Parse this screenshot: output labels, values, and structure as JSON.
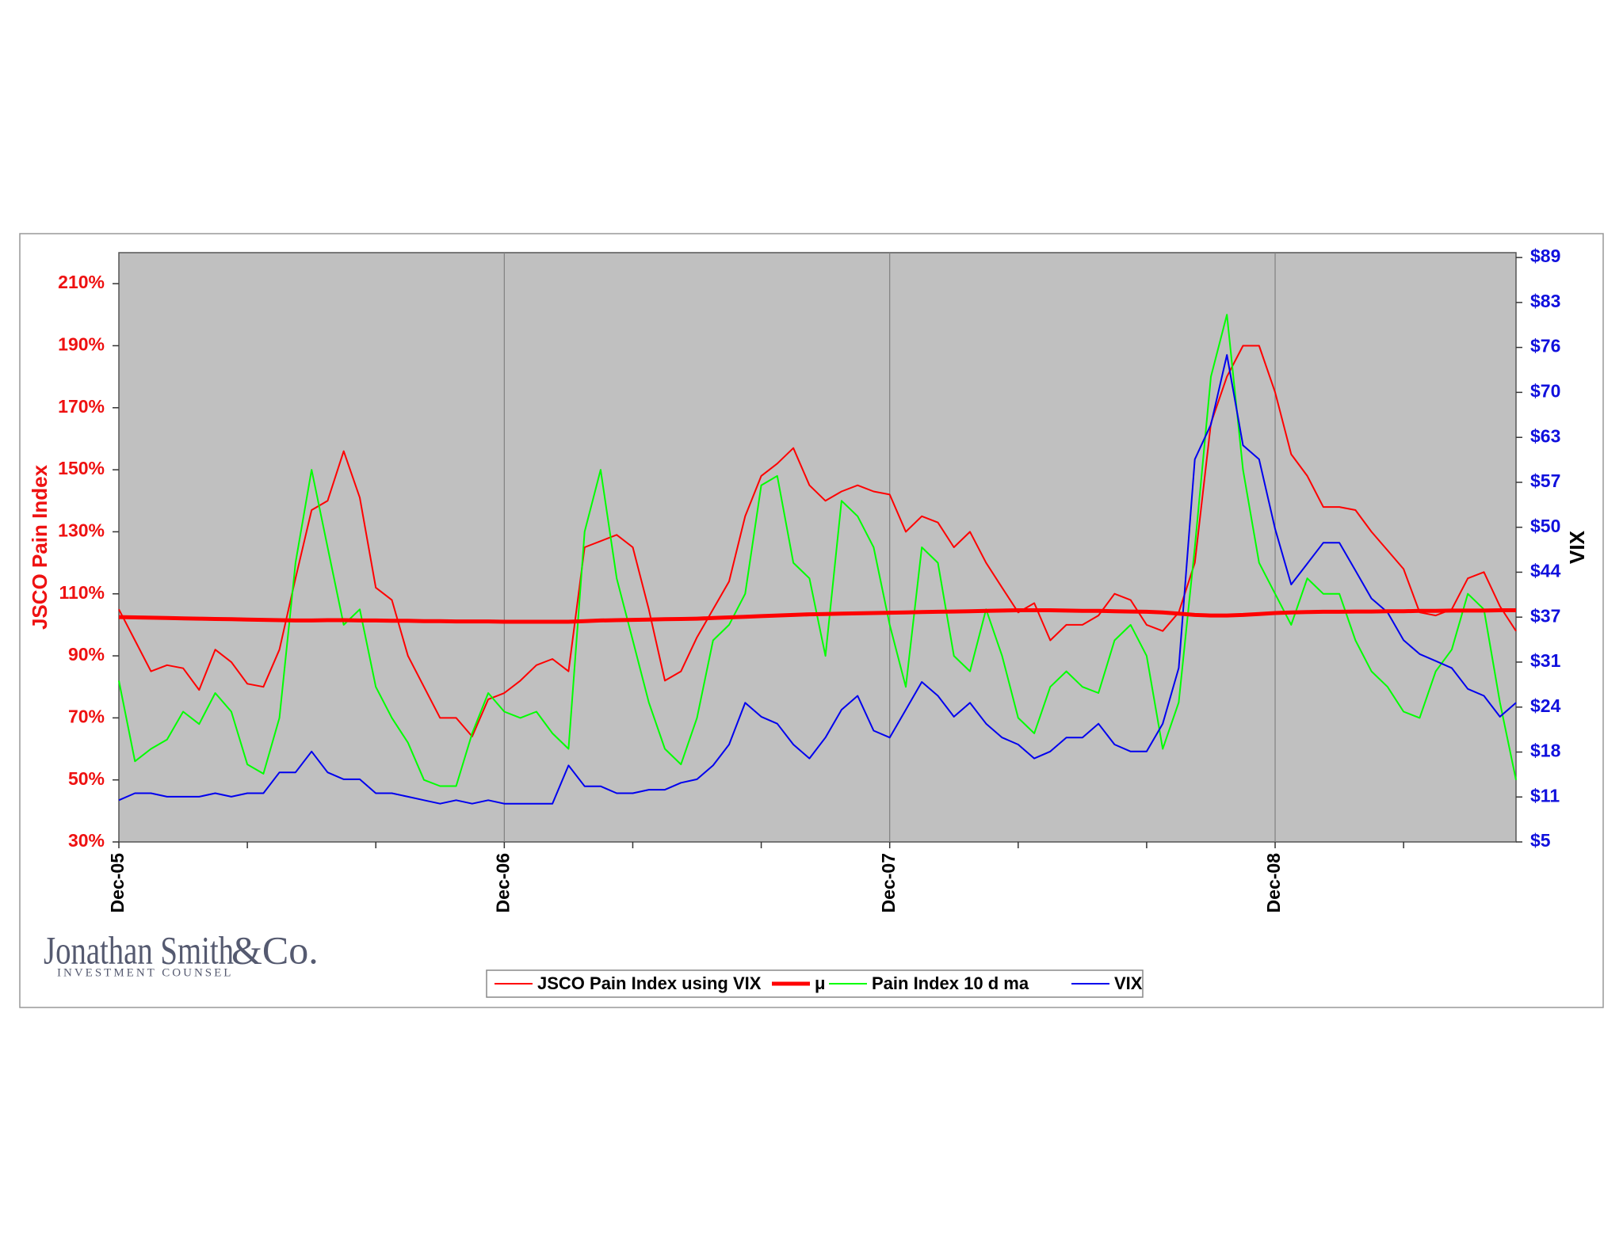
{
  "chart_data": {
    "type": "line",
    "ylabel": "JSCO Pain Index",
    "y2label": "VIX",
    "categories": [
      "Dec-05",
      null,
      null,
      null,
      null,
      null,
      null,
      null,
      null,
      null,
      null,
      null,
      null,
      null,
      null,
      null,
      null,
      null,
      null,
      null,
      null,
      null,
      null,
      null,
      "Dec-06",
      null,
      null,
      null,
      null,
      null,
      null,
      null,
      null,
      null,
      null,
      null,
      null,
      null,
      null,
      null,
      null,
      null,
      null,
      null,
      null,
      null,
      null,
      null,
      "Dec-07",
      null,
      null,
      null,
      null,
      null,
      null,
      null,
      null,
      null,
      null,
      null,
      null,
      null,
      null,
      null,
      null,
      null,
      null,
      null,
      null,
      null,
      null,
      null,
      "Dec-08",
      null,
      null,
      null,
      null,
      null,
      null,
      null,
      null,
      null,
      null,
      null,
      null,
      null,
      null,
      null
    ],
    "series": [
      {
        "name": "JSCO Pain Index using VIX",
        "color": "#ff0000",
        "width": 2,
        "values": [
          105,
          95,
          85,
          87,
          86,
          79,
          92,
          88,
          81,
          80,
          92,
          115,
          137,
          140,
          156,
          141,
          112,
          108,
          90,
          80,
          70,
          70,
          64,
          76,
          78,
          82,
          87,
          89,
          85,
          125,
          127,
          129,
          125,
          105,
          82,
          85,
          96,
          105,
          114,
          135,
          148,
          152,
          157,
          145,
          140,
          143,
          145,
          143,
          142,
          130,
          135,
          133,
          125,
          130,
          120,
          112,
          104,
          107,
          95,
          100,
          100,
          103,
          110,
          108,
          100,
          98,
          104,
          120,
          165,
          180,
          190,
          190,
          175,
          155,
          148,
          138,
          138,
          137,
          130,
          124,
          118,
          104,
          103,
          105,
          115,
          117,
          106,
          98
        ]
      },
      {
        "name": "μ",
        "color": "#ff0000",
        "width": 5,
        "values": [
          102.5,
          102.4,
          102.3,
          102.2,
          102.1,
          102,
          101.9,
          101.8,
          101.7,
          101.6,
          101.5,
          101.4,
          101.4,
          101.5,
          101.5,
          101.4,
          101.4,
          101.3,
          101.3,
          101.2,
          101.2,
          101.1,
          101.1,
          101.1,
          101,
          101,
          101,
          101,
          101,
          101.2,
          101.4,
          101.5,
          101.6,
          101.7,
          101.8,
          101.9,
          102,
          102.2,
          102.4,
          102.6,
          102.8,
          103,
          103.2,
          103.4,
          103.5,
          103.6,
          103.7,
          103.8,
          103.9,
          104,
          104.1,
          104.2,
          104.3,
          104.4,
          104.5,
          104.6,
          104.7,
          104.7,
          104.7,
          104.6,
          104.5,
          104.5,
          104.4,
          104.3,
          104.2,
          104,
          103.6,
          103.2,
          103,
          103,
          103.2,
          103.5,
          103.8,
          104,
          104.1,
          104.2,
          104.2,
          104.3,
          104.3,
          104.4,
          104.4,
          104.5,
          104.5,
          104.6,
          104.6,
          104.6,
          104.7,
          104.7
        ]
      },
      {
        "name": "Pain Index 10 d ma",
        "color": "#00ff00",
        "width": 2,
        "values": [
          82,
          56,
          60,
          63,
          72,
          68,
          78,
          72,
          55,
          52,
          70,
          120,
          150,
          125,
          100,
          105,
          80,
          70,
          62,
          50,
          48,
          48,
          65,
          78,
          72,
          70,
          72,
          65,
          60,
          130,
          150,
          115,
          95,
          75,
          60,
          55,
          70,
          95,
          100,
          110,
          145,
          148,
          120,
          115,
          90,
          140,
          135,
          125,
          100,
          80,
          125,
          120,
          90,
          85,
          105,
          90,
          70,
          65,
          80,
          85,
          80,
          78,
          95,
          100,
          90,
          60,
          75,
          125,
          180,
          200,
          150,
          120,
          110,
          100,
          115,
          110,
          110,
          95,
          85,
          80,
          72,
          70,
          85,
          92,
          110,
          105,
          75,
          50
        ]
      },
      {
        "name": "VIX",
        "color": "#0000ee",
        "width": 2,
        "axis": "y2",
        "values": [
          11,
          12,
          12,
          11.5,
          11.5,
          11.5,
          12,
          11.5,
          12,
          12,
          15,
          15,
          18,
          15,
          14,
          14,
          12,
          12,
          11.5,
          11,
          10.5,
          11,
          10.5,
          11,
          10.5,
          10.5,
          10.5,
          10.5,
          16,
          13,
          13,
          12,
          12,
          12.5,
          12.5,
          13.5,
          14,
          16,
          19,
          25,
          23,
          22,
          19,
          17,
          20,
          24,
          26,
          21,
          20,
          24,
          28,
          26,
          23,
          25,
          22,
          20,
          19,
          17,
          18,
          20,
          20,
          22,
          19,
          18,
          18,
          22,
          30,
          60,
          65,
          75,
          62,
          60,
          50,
          42,
          45,
          48,
          48,
          44,
          40,
          38,
          34,
          32,
          31,
          30,
          27,
          26,
          23,
          25
        ]
      }
    ],
    "ylim": [
      30,
      220
    ],
    "yticks": [
      {
        "value": 30,
        "label": "30%"
      },
      {
        "value": 50,
        "label": "50%"
      },
      {
        "value": 70,
        "label": "70%"
      },
      {
        "value": 90,
        "label": "90%"
      },
      {
        "value": 110,
        "label": "110%"
      },
      {
        "value": 130,
        "label": "130%"
      },
      {
        "value": 150,
        "label": "150%"
      },
      {
        "value": 170,
        "label": "170%"
      },
      {
        "value": 190,
        "label": "190%"
      },
      {
        "value": 210,
        "label": "210%"
      }
    ],
    "y2lim": [
      5,
      89.7
    ],
    "y2ticks": [
      {
        "value": 5,
        "label": "$5"
      },
      {
        "value": 11.46,
        "label": "$11"
      },
      {
        "value": 17.92,
        "label": "$18"
      },
      {
        "value": 24.38,
        "label": "$24"
      },
      {
        "value": 30.85,
        "label": "$31"
      },
      {
        "value": 37.31,
        "label": "$37"
      },
      {
        "value": 43.77,
        "label": "$44"
      },
      {
        "value": 50.23,
        "label": "$50"
      },
      {
        "value": 56.69,
        "label": "$57"
      },
      {
        "value": 63.15,
        "label": "$63"
      },
      {
        "value": 69.62,
        "label": "$70"
      },
      {
        "value": 76.08,
        "label": "$76"
      },
      {
        "value": 82.54,
        "label": "$83"
      },
      {
        "value": 89,
        "label": "$89"
      }
    ],
    "xgrid": true,
    "background": "#c0c0c0",
    "legend": "bottom"
  },
  "logo": {
    "name": "Jonathan Smith",
    "suffix": "&Co.",
    "tagline": "INVESTMENT COUNSEL"
  }
}
